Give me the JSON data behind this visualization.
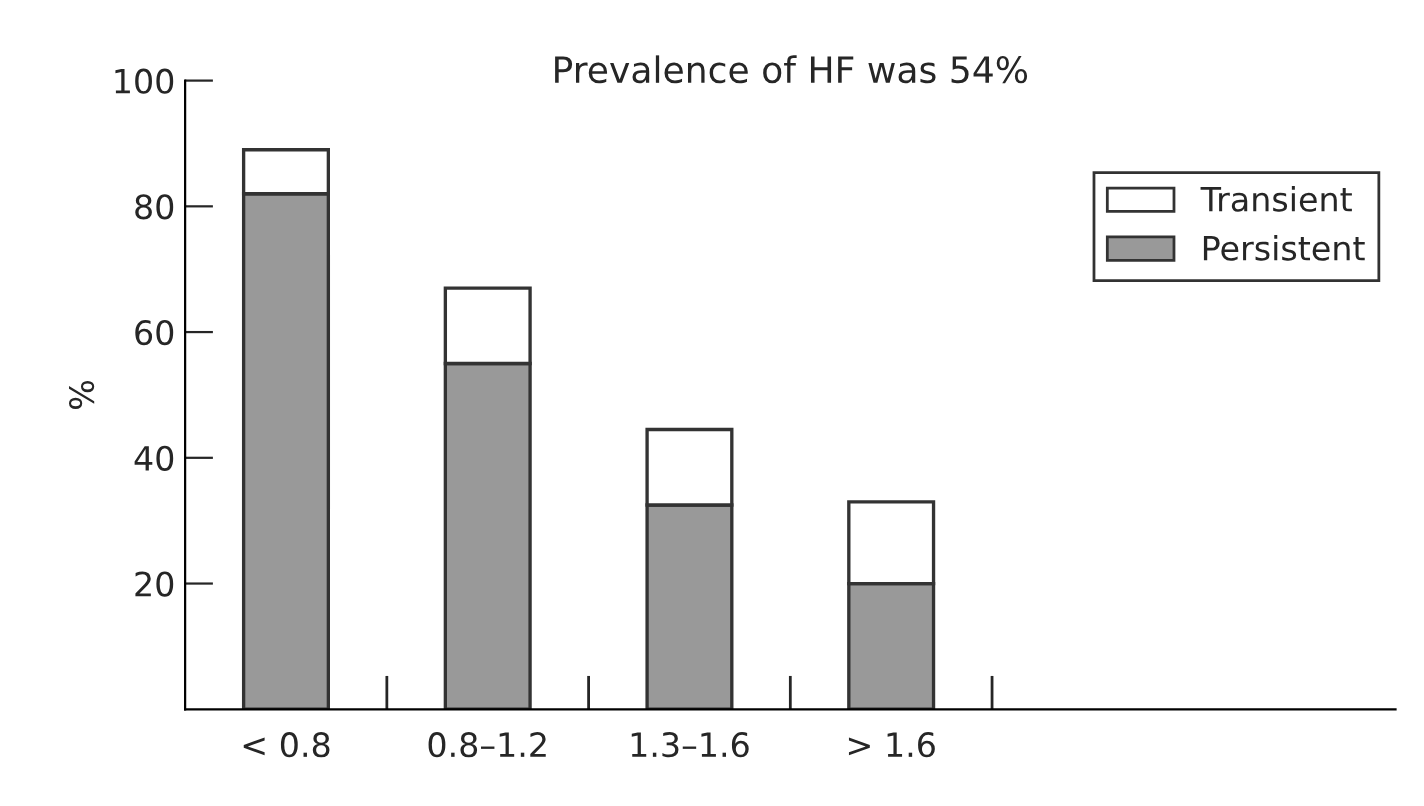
{
  "chart_data": {
    "type": "bar",
    "title": "Prevalence of HF was 54%",
    "ylabel": "%",
    "categories": [
      "< 0.8",
      "0.8–1.2",
      "1.3–1.6",
      "> 1.6"
    ],
    "stacked": true,
    "series": [
      {
        "name": "Persistent",
        "color": "#999999",
        "values": [
          82,
          55,
          32.5,
          20
        ]
      },
      {
        "name": "Transient",
        "color": "#ffffff",
        "values": [
          7,
          12,
          12,
          13
        ]
      }
    ],
    "ylim": [
      0,
      100
    ],
    "yticks": [
      20,
      40,
      60,
      80,
      100
    ],
    "grid": false,
    "legend": "top right"
  }
}
